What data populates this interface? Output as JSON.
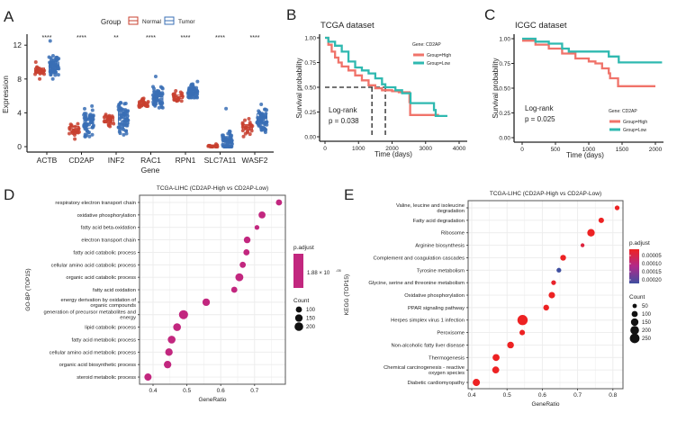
{
  "chart_data": [
    {
      "panel": "A",
      "type": "box",
      "xlabel": "Gene",
      "ylabel": "Expression",
      "ylim": [
        0,
        13
      ],
      "yticks": [
        0,
        4,
        8,
        12
      ],
      "categories": [
        "ACTB",
        "CD2AP",
        "INF2",
        "RAC1",
        "RPN1",
        "SLC7A11",
        "WASF2"
      ],
      "significance": [
        "****",
        "****",
        "**",
        "****",
        "****",
        "****",
        "****"
      ],
      "legend": {
        "title": "Group",
        "entries": [
          "Normal",
          "Tumor"
        ],
        "placement": "top"
      },
      "series": [
        {
          "name": "Normal",
          "color": "#c8402f",
          "boxes": [
            {
              "median": 9.0,
              "q1": 8.7,
              "q3": 9.3,
              "min": 8.0,
              "max": 10.0
            },
            {
              "median": 2.1,
              "q1": 1.9,
              "q3": 2.4,
              "min": 0.9,
              "max": 2.7
            },
            {
              "median": 3.1,
              "q1": 2.8,
              "q3": 3.3,
              "min": 2.4,
              "max": 3.8
            },
            {
              "median": 5.1,
              "q1": 4.9,
              "q3": 5.3,
              "min": 4.7,
              "max": 5.7
            },
            {
              "median": 5.9,
              "q1": 5.7,
              "q3": 6.1,
              "min": 5.4,
              "max": 6.6
            },
            {
              "median": 0.05,
              "q1": 0.0,
              "q3": 0.1,
              "min": 0.0,
              "max": 0.3
            },
            {
              "median": 2.3,
              "q1": 2.0,
              "q3": 2.6,
              "min": 1.2,
              "max": 3.3
            }
          ]
        },
        {
          "name": "Tumor",
          "color": "#3a6fb5",
          "boxes": [
            {
              "median": 9.6,
              "q1": 9.1,
              "q3": 10.0,
              "min": 8.0,
              "max": 12.5
            },
            {
              "median": 2.8,
              "q1": 2.2,
              "q3": 3.4,
              "min": 1.2,
              "max": 4.8
            },
            {
              "median": 3.4,
              "q1": 2.7,
              "q3": 4.1,
              "min": 1.4,
              "max": 5.2
            },
            {
              "median": 5.9,
              "q1": 5.4,
              "q3": 6.3,
              "min": 4.6,
              "max": 8.3
            },
            {
              "median": 6.5,
              "q1": 6.2,
              "q3": 6.8,
              "min": 5.8,
              "max": 7.7
            },
            {
              "median": 0.6,
              "q1": 0.2,
              "q3": 1.2,
              "min": 0.0,
              "max": 4.5
            },
            {
              "median": 3.4,
              "q1": 2.8,
              "q3": 3.9,
              "min": 1.7,
              "max": 5.0
            }
          ]
        }
      ]
    },
    {
      "panel": "B",
      "type": "line",
      "title": "TCGA dataset",
      "xlabel": "Time (days)",
      "ylabel": "Survival probability",
      "xlim": [
        0,
        4000
      ],
      "xticks": [
        0,
        1000,
        2000,
        3000,
        4000
      ],
      "yticks": [
        0,
        0.25,
        0.5,
        0.75,
        1
      ],
      "yticklabels": [
        "0.00",
        "0.25",
        "0.50",
        "0.75",
        "1.00"
      ],
      "legend": {
        "title": "Gene: CD2AP",
        "placement": "top-right"
      },
      "annotation": [
        "Log-rank",
        "p = 0.038"
      ],
      "median_survival": [
        1400,
        1800
      ],
      "series": [
        {
          "name": "Group=High",
          "color": "#f0736a",
          "x": [
            0,
            100,
            200,
            300,
            400,
            500,
            700,
            900,
            1100,
            1300,
            1500,
            1700,
            2000,
            2200,
            2500,
            2520,
            2540,
            3400
          ],
          "y": [
            1,
            0.93,
            0.86,
            0.8,
            0.75,
            0.71,
            0.67,
            0.62,
            0.57,
            0.52,
            0.49,
            0.47,
            0.46,
            0.45,
            0.45,
            0.35,
            0.22,
            0.22
          ]
        },
        {
          "name": "Group=Low",
          "color": "#2fb9b0",
          "x": [
            0,
            100,
            300,
            500,
            700,
            900,
            1100,
            1300,
            1500,
            1700,
            1800,
            2100,
            2300,
            2500,
            2550,
            3200,
            3250,
            3300,
            3650
          ],
          "y": [
            1,
            0.96,
            0.92,
            0.86,
            0.76,
            0.7,
            0.67,
            0.64,
            0.59,
            0.53,
            0.5,
            0.47,
            0.44,
            0.44,
            0.34,
            0.34,
            0.27,
            0.21,
            0.21
          ]
        }
      ]
    },
    {
      "panel": "C",
      "type": "line",
      "title": "ICGC dataset",
      "xlabel": "Time (days)",
      "ylabel": "Survival probability",
      "xlim": [
        0,
        2000
      ],
      "xticks": [
        0,
        500,
        1000,
        1500,
        2000
      ],
      "yticks": [
        0,
        0.25,
        0.5,
        0.75,
        1
      ],
      "yticklabels": [
        "0.00",
        "0.25",
        "0.50",
        "0.75",
        "1.00"
      ],
      "legend": {
        "title": "Gene: CD2AP",
        "placement": "bottom-right"
      },
      "annotation": [
        "Log-rank",
        "p = 0.025"
      ],
      "series": [
        {
          "name": "Group=High",
          "color": "#f0736a",
          "x": [
            0,
            200,
            400,
            600,
            800,
            1000,
            1100,
            1200,
            1300,
            1320,
            1440,
            2000
          ],
          "y": [
            0.98,
            0.94,
            0.9,
            0.85,
            0.8,
            0.77,
            0.75,
            0.7,
            0.65,
            0.6,
            0.52,
            0.52
          ]
        },
        {
          "name": "Group=Low",
          "color": "#2fb9b0",
          "x": [
            0,
            200,
            400,
            600,
            700,
            1200,
            1300,
            1400,
            1450,
            2100
          ],
          "y": [
            1,
            0.97,
            0.95,
            0.9,
            0.87,
            0.87,
            0.82,
            0.82,
            0.76,
            0.76
          ]
        }
      ]
    },
    {
      "panel": "D",
      "type": "scatter",
      "title": "TCGA-LIHC (CD2AP-High vs CD2AP-Low)",
      "xlabel": "GeneRatio",
      "ylabel": "GO-BP (TOP15)",
      "xticks": [
        0.4,
        0.5,
        0.6,
        0.7
      ],
      "grid": true,
      "color": "#c2277f",
      "categories": [
        [
          "respiratory electron transport chain"
        ],
        [
          "oxidative phosphorylation"
        ],
        [
          "fatty acid beta-oxidation"
        ],
        [
          "electron transport chain"
        ],
        [
          "fatty acid catabolic process"
        ],
        [
          "cellular amino acid catabolic process"
        ],
        [
          "organic acid catabolic process"
        ],
        [
          "fatty acid oxidation"
        ],
        [
          "energy derivation by oxidation of",
          "organic compounds"
        ],
        [
          "generation of precursor metabolites and",
          "energy"
        ],
        [
          "lipid catabolic process"
        ],
        [
          "fatty acid metabolic process"
        ],
        [
          "cellular amino acid metabolic process"
        ],
        [
          "organic acid biosynthetic process"
        ],
        [
          "steroid metabolic process"
        ]
      ],
      "values": [
        0.772,
        0.722,
        0.707,
        0.678,
        0.676,
        0.665,
        0.655,
        0.64,
        0.557,
        0.49,
        0.471,
        0.455,
        0.447,
        0.443,
        0.385
      ],
      "counts": [
        100,
        130,
        60,
        120,
        100,
        100,
        170,
        100,
        150,
        220,
        160,
        160,
        150,
        150,
        140
      ],
      "padjust_legend": {
        "title": "p.adjust",
        "label": "1.88 × 10",
        "exponent": "-05"
      },
      "count_legend": {
        "title": "Count",
        "values": [
          100,
          150,
          200
        ]
      }
    },
    {
      "panel": "E",
      "type": "scatter",
      "title": "TCGA-LIHC (CD2AP-High vs CD2AP-Low)",
      "xlabel": "GeneRatio",
      "ylabel": "KEGG (TOP15)",
      "xticks": [
        0.4,
        0.5,
        0.6,
        0.7,
        0.8
      ],
      "grid": true,
      "categories": [
        [
          "Valine, leucine and isoleucine",
          "degradation"
        ],
        [
          "Fatty acid degradation"
        ],
        [
          "Ribosome"
        ],
        [
          "Arginine biosynthesis"
        ],
        [
          "Complement and coagulation cascades"
        ],
        [
          "Tyrosine metabolism"
        ],
        [
          "Glycine, serine and threonine metabolism"
        ],
        [
          "Oxidative phosphorylation"
        ],
        [
          "PPAR signaling pathway"
        ],
        [
          "Herpes simplex virus 1 infection"
        ],
        [
          "Peroxisome"
        ],
        [
          "Non-alcoholic fatty liver disease"
        ],
        [
          "Thermogenesis"
        ],
        [
          "Chemical carcinogenesis - reactive",
          "oxygen species"
        ],
        [
          "Diabetic cardiomyopathy"
        ]
      ],
      "values": [
        0.812,
        0.767,
        0.738,
        0.714,
        0.659,
        0.647,
        0.632,
        0.627,
        0.611,
        0.544,
        0.543,
        0.51,
        0.469,
        0.468,
        0.413
      ],
      "counts": [
        60,
        80,
        150,
        40,
        90,
        60,
        60,
        110,
        90,
        280,
        80,
        120,
        130,
        130,
        140
      ],
      "padjust": [
        1e-06,
        1e-06,
        1e-06,
        3e-05,
        1e-06,
        0.00022,
        1e-05,
        1e-06,
        1e-06,
        1e-06,
        1e-06,
        1e-06,
        1e-06,
        1e-06,
        1e-06
      ],
      "color_scale": {
        "low": "#ee2222",
        "mid": "#b02a8a",
        "high": "#3f4fa0",
        "domain": [
          0,
          0.00022
        ]
      },
      "padjust_legend": {
        "title": "p.adjust",
        "ticks": [
          "0.00005",
          "0.00010",
          "0.00015",
          "0.00020"
        ]
      },
      "count_legend": {
        "title": "Count",
        "values": [
          50,
          100,
          150,
          200,
          250
        ]
      }
    }
  ],
  "panel_labels": [
    "A",
    "B",
    "C",
    "D",
    "E"
  ]
}
